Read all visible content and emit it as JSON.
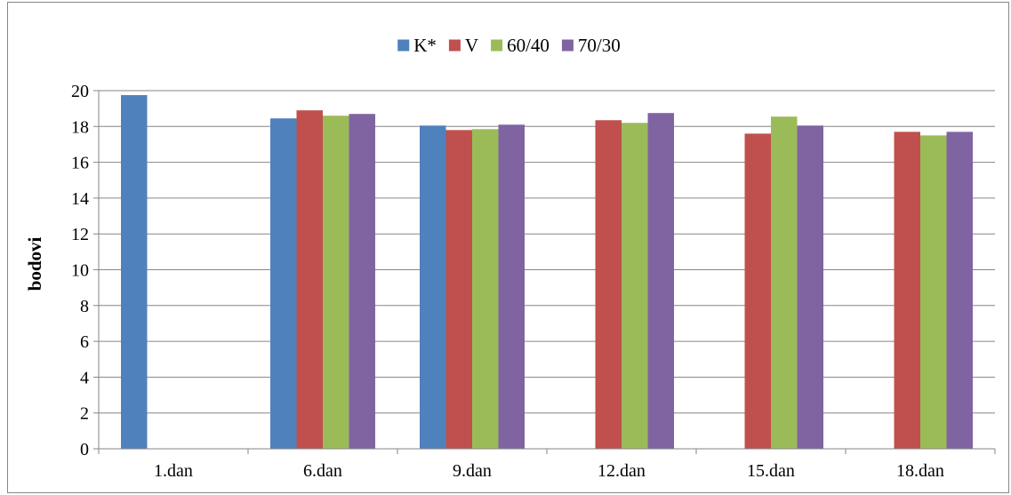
{
  "chart_data": {
    "type": "bar",
    "categories": [
      "1.dan",
      "6.dan",
      "9.dan",
      "12.dan",
      "15.dan",
      "18.dan"
    ],
    "series": [
      {
        "name": "K*",
        "color": "#4F81BD",
        "values": [
          19.75,
          18.45,
          18.05,
          null,
          null,
          null
        ]
      },
      {
        "name": "V",
        "color": "#C0504D",
        "values": [
          null,
          18.9,
          17.8,
          18.35,
          17.6,
          17.7
        ]
      },
      {
        "name": "60/40",
        "color": "#9BBB59",
        "values": [
          null,
          18.6,
          17.85,
          18.2,
          18.55,
          17.5
        ]
      },
      {
        "name": "70/30",
        "color": "#8064A2",
        "values": [
          null,
          18.7,
          18.1,
          18.75,
          18.05,
          17.7
        ]
      }
    ],
    "title": "",
    "xlabel": "",
    "ylabel": "bodovi",
    "ylim": [
      0,
      20
    ],
    "yticks": [
      "0",
      "2",
      "4",
      "6",
      "8",
      "10",
      "12",
      "14",
      "16",
      "18",
      "20"
    ],
    "grid": true,
    "legend_position": "top-center"
  }
}
